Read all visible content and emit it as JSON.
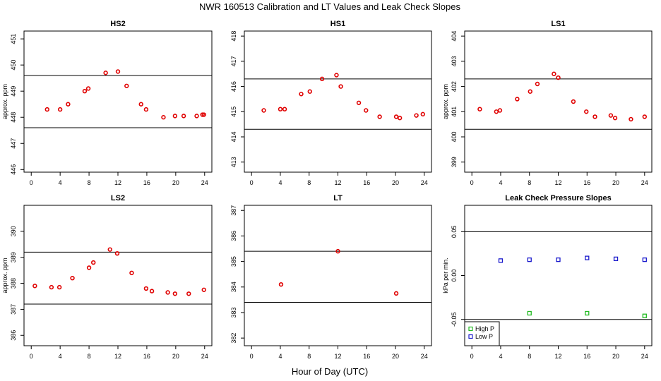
{
  "title": "NWR  160513  Calibration and LT Values and Leak Check Slopes",
  "xlabel": "Hour of Day (UTC)",
  "colors": {
    "points": "#e00000",
    "high_p": "#22bb22",
    "low_p": "#1a1acc",
    "lines": "#000000"
  },
  "chart_data": [
    {
      "type": "scatter",
      "title": "HS2",
      "ylabel": "approx. ppm",
      "xlim": [
        -1,
        25
      ],
      "ylim": [
        445.9,
        451.3
      ],
      "xticks": [
        0,
        4,
        8,
        12,
        16,
        20,
        24
      ],
      "yticks": [
        446,
        447,
        448,
        449,
        450,
        451
      ],
      "hlines": [
        447.6,
        449.6
      ],
      "series": [
        {
          "x": [
            2.2,
            4.0,
            5.1,
            7.4,
            7.9,
            10.3,
            12.0,
            13.2,
            15.2,
            15.9,
            18.3,
            19.9,
            21.1,
            22.9,
            23.7,
            23.9
          ],
          "y": [
            448.3,
            448.3,
            448.5,
            449.0,
            449.1,
            449.7,
            449.75,
            449.2,
            448.5,
            448.3,
            448.0,
            448.05,
            448.05,
            448.05,
            448.1,
            448.1
          ]
        }
      ]
    },
    {
      "type": "scatter",
      "title": "HS1",
      "ylabel": "",
      "xlim": [
        -1,
        25
      ],
      "ylim": [
        412.6,
        418.2
      ],
      "xticks": [
        0,
        4,
        8,
        12,
        16,
        20,
        24
      ],
      "yticks": [
        413,
        414,
        415,
        416,
        417,
        418
      ],
      "hlines": [
        414.3,
        416.3
      ],
      "series": [
        {
          "x": [
            1.7,
            4.0,
            4.6,
            6.9,
            8.1,
            9.8,
            11.8,
            12.4,
            14.9,
            15.9,
            17.8,
            20.1,
            20.6,
            22.9,
            23.8
          ],
          "y": [
            415.05,
            415.1,
            415.1,
            415.7,
            415.8,
            416.3,
            416.45,
            416.0,
            415.35,
            415.05,
            414.8,
            414.8,
            414.75,
            414.85,
            414.9
          ]
        }
      ]
    },
    {
      "type": "scatter",
      "title": "LS1",
      "ylabel": "approx. ppm",
      "xlim": [
        -1,
        25
      ],
      "ylim": [
        398.6,
        404.2
      ],
      "xticks": [
        0,
        4,
        8,
        12,
        16,
        20,
        24
      ],
      "yticks": [
        399,
        400,
        401,
        402,
        403,
        404
      ],
      "hlines": [
        400.3,
        402.3
      ],
      "series": [
        {
          "x": [
            1.1,
            3.4,
            3.9,
            6.3,
            8.1,
            9.1,
            11.4,
            12.0,
            14.1,
            15.9,
            17.1,
            19.3,
            19.9,
            22.1,
            24.0
          ],
          "y": [
            401.1,
            401.0,
            401.05,
            401.5,
            401.8,
            402.1,
            402.5,
            402.35,
            401.4,
            401.0,
            400.8,
            400.85,
            400.75,
            400.7,
            400.8
          ]
        }
      ]
    },
    {
      "type": "scatter",
      "title": "LS2",
      "ylabel": "approx. ppm",
      "xlim": [
        -1,
        25
      ],
      "ylim": [
        385.6,
        391.0
      ],
      "xticks": [
        0,
        4,
        8,
        12,
        16,
        20,
        24
      ],
      "yticks": [
        386,
        387,
        388,
        389,
        390
      ],
      "hlines": [
        387.2,
        389.2
      ],
      "series": [
        {
          "x": [
            0.5,
            2.8,
            3.9,
            5.7,
            8.0,
            8.6,
            10.9,
            11.9,
            13.9,
            15.9,
            16.7,
            18.9,
            19.9,
            21.8,
            23.9
          ],
          "y": [
            387.9,
            387.85,
            387.85,
            388.2,
            388.6,
            388.8,
            389.3,
            389.15,
            388.4,
            387.8,
            387.7,
            387.65,
            387.6,
            387.6,
            387.75
          ]
        }
      ]
    },
    {
      "type": "scatter",
      "title": "LT",
      "ylabel": "",
      "xlim": [
        -1,
        25
      ],
      "ylim": [
        381.7,
        387.2
      ],
      "xticks": [
        0,
        4,
        8,
        12,
        16,
        20,
        24
      ],
      "yticks": [
        382,
        383,
        384,
        385,
        386,
        387
      ],
      "hlines": [
        383.4,
        385.4
      ],
      "series": [
        {
          "x": [
            4.1,
            12.0,
            20.1
          ],
          "y": [
            384.1,
            385.4,
            383.75
          ]
        }
      ]
    },
    {
      "type": "scatter",
      "title": "Leak Check Pressure Slopes",
      "ylabel": "kPa per min.",
      "xlim": [
        -1,
        25
      ],
      "ylim": [
        -0.08,
        0.08
      ],
      "xticks": [
        0,
        4,
        8,
        12,
        16,
        20,
        24
      ],
      "yticks": [
        -0.05,
        0.0,
        0.05
      ],
      "ytick_labels": [
        "-0.05",
        "0.00",
        "0.05"
      ],
      "hlines": [
        -0.05,
        0.05
      ],
      "legend": "bottom-left",
      "series": [
        {
          "name": "High P",
          "x": [
            8,
            16,
            24
          ],
          "y": [
            -0.043,
            -0.043,
            -0.046
          ]
        },
        {
          "name": "Low P",
          "x": [
            4,
            8,
            12,
            16,
            20,
            24
          ],
          "y": [
            0.017,
            0.018,
            0.018,
            0.02,
            0.019,
            0.018
          ]
        }
      ]
    }
  ]
}
